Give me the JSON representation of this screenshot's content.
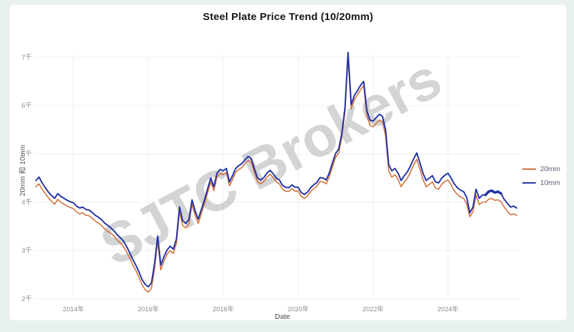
{
  "page": {
    "background": "#e9f1ec",
    "card_background": "#ffffff"
  },
  "header": {
    "title": "Steel Plate Price Trend (10/20mm)"
  },
  "watermark": {
    "text": "SJTC Brokers",
    "color": "rgba(148,153,158,0.42)"
  },
  "legend": {
    "items": [
      {
        "label": "20mm",
        "color": "#d2703a"
      },
      {
        "label": "10mm",
        "color": "#2232a4"
      }
    ]
  },
  "chart_data": {
    "type": "line",
    "title": "Steel Plate Price Trend (10/20mm)",
    "xlabel": "Date",
    "ylabel": "20mm 和 10mm",
    "x_start": "2013-01",
    "x_interval": "monthly",
    "x_tick_years": [
      2014,
      2016,
      2018,
      2020,
      2022,
      2024
    ],
    "x_tick_labels": [
      "2014年",
      "2016年",
      "2018年",
      "2020年",
      "2022年",
      "2024年"
    ],
    "y_ticks": [
      {
        "value": 2000,
        "label": "2千"
      },
      {
        "value": 3000,
        "label": "3千"
      },
      {
        "value": 4000,
        "label": "4千"
      },
      {
        "value": 5000,
        "label": "5千"
      },
      {
        "value": 6000,
        "label": "6千"
      },
      {
        "value": 7000,
        "label": "7千"
      }
    ],
    "ylim": [
      1900,
      7300
    ],
    "grid": true,
    "legend_position": "right",
    "series": [
      {
        "name": "20mm",
        "color": "#d2703a",
        "width": 1.6,
        "values": [
          4320,
          4380,
          4270,
          4180,
          4090,
          4020,
          3960,
          4060,
          4000,
          3960,
          3920,
          3890,
          3870,
          3800,
          3760,
          3780,
          3730,
          3720,
          3670,
          3610,
          3570,
          3520,
          3450,
          3400,
          3360,
          3300,
          3220,
          3160,
          3090,
          2980,
          2850,
          2710,
          2590,
          2450,
          2290,
          2190,
          2140,
          2220,
          2620,
          3200,
          2600,
          2780,
          2920,
          3000,
          2940,
          3150,
          3800,
          3520,
          3470,
          3550,
          3960,
          3730,
          3560,
          3770,
          3970,
          4200,
          4420,
          4240,
          4520,
          4600,
          4570,
          4620,
          4340,
          4470,
          4620,
          4680,
          4720,
          4800,
          4870,
          4820,
          4610,
          4420,
          4380,
          4430,
          4520,
          4580,
          4510,
          4420,
          4380,
          4270,
          4230,
          4220,
          4280,
          4230,
          4230,
          4120,
          4080,
          4130,
          4220,
          4280,
          4330,
          4430,
          4420,
          4380,
          4530,
          4740,
          4930,
          5020,
          5350,
          5870,
          6980,
          5930,
          6120,
          6220,
          6330,
          6410,
          5800,
          5590,
          5560,
          5630,
          5700,
          5660,
          5380,
          4650,
          4520,
          4570,
          4470,
          4320,
          4420,
          4500,
          4620,
          4770,
          4890,
          4690,
          4470,
          4320,
          4370,
          4420,
          4290,
          4270,
          4370,
          4430,
          4460,
          4360,
          4240,
          4160,
          4110,
          4080,
          3960,
          3700,
          3800,
          4150,
          3950,
          4000,
          4000,
          4060,
          4080,
          4040,
          4050,
          4010,
          3900,
          3820,
          3740,
          3760,
          3730
        ]
      },
      {
        "name": "10mm",
        "color": "#2232a4",
        "width": 2,
        "bold_segment": {
          "start_index": 144,
          "end_index": 149,
          "width": 3.6
        },
        "values": [
          4450,
          4520,
          4400,
          4300,
          4210,
          4140,
          4080,
          4180,
          4120,
          4080,
          4040,
          4010,
          3990,
          3920,
          3880,
          3900,
          3850,
          3840,
          3790,
          3730,
          3690,
          3640,
          3570,
          3520,
          3470,
          3410,
          3330,
          3270,
          3200,
          3090,
          2960,
          2820,
          2700,
          2560,
          2400,
          2300,
          2250,
          2330,
          2720,
          3300,
          2700,
          2870,
          3010,
          3090,
          3030,
          3240,
          3900,
          3620,
          3560,
          3640,
          4050,
          3820,
          3650,
          3850,
          4050,
          4280,
          4500,
          4320,
          4600,
          4680,
          4650,
          4700,
          4420,
          4550,
          4700,
          4760,
          4800,
          4880,
          4950,
          4900,
          4690,
          4500,
          4460,
          4510,
          4600,
          4660,
          4590,
          4500,
          4460,
          4350,
          4310,
          4300,
          4360,
          4310,
          4310,
          4200,
          4160,
          4210,
          4300,
          4360,
          4410,
          4510,
          4500,
          4460,
          4610,
          4820,
          5010,
          5100,
          5430,
          5950,
          7100,
          6020,
          6210,
          6310,
          6420,
          6500,
          5900,
          5700,
          5680,
          5750,
          5820,
          5780,
          5500,
          4780,
          4650,
          4700,
          4600,
          4450,
          4550,
          4630,
          4750,
          4900,
          5020,
          4820,
          4600,
          4450,
          4500,
          4550,
          4420,
          4400,
          4500,
          4560,
          4600,
          4500,
          4380,
          4300,
          4250,
          4220,
          4100,
          3780,
          3900,
          4270,
          4080,
          4150,
          4150,
          4220,
          4240,
          4200,
          4220,
          4180,
          4060,
          3980,
          3900,
          3920,
          3880
        ]
      }
    ]
  }
}
